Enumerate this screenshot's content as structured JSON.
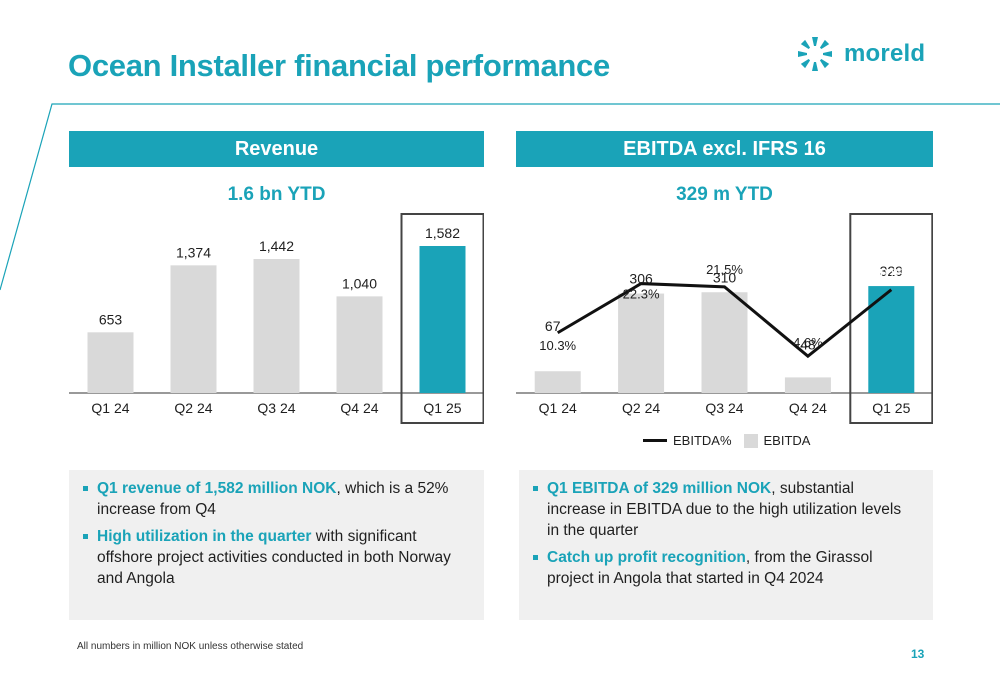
{
  "title": "Ocean Installer financial performance",
  "logo": {
    "text": "moreld",
    "icon": "moreld-logo-icon"
  },
  "revenue": {
    "header": "Revenue",
    "ytd": "1.6 bn YTD"
  },
  "ebitda": {
    "header": "EBITDA excl. IFRS 16",
    "ytd": "329 m YTD"
  },
  "legend": {
    "line_label": "EBITDA%",
    "bar_label": "EBITDA"
  },
  "revenue_text": {
    "b1_em": "Q1 revenue of 1,582 million NOK",
    "b1_rest": ", which is a 52% increase from Q4",
    "b2_em": "High utilization in the quarter",
    "b2_rest": " with significant offshore project activities conducted in both Norway and Angola"
  },
  "ebitda_text": {
    "b1_em": "Q1 EBITDA of 329 million NOK",
    "b1_rest": ", substantial increase in EBITDA due to the high utilization levels in the quarter",
    "b2_em": "Catch up profit recognition",
    "b2_rest": ", from the Girassol project in Angola that started in Q4 2024"
  },
  "footnote": "All numbers in million NOK unless otherwise stated",
  "page_number": "13",
  "colors": {
    "accent": "#1aa3b8",
    "bar_grey": "#d9d9d9",
    "line": "#111111"
  },
  "chart_data": [
    {
      "type": "bar",
      "title": "Revenue",
      "categories": [
        "Q1 24",
        "Q2 24",
        "Q3 24",
        "Q4 24",
        "Q1 25"
      ],
      "values": [
        653,
        1374,
        1442,
        1040,
        1582
      ],
      "value_labels": [
        "653",
        "1,374",
        "1,442",
        "1,040",
        "1,582"
      ],
      "highlight_index": 4,
      "ylim": [
        0,
        1582
      ]
    },
    {
      "type": "bar+line",
      "title": "EBITDA excl. IFRS 16",
      "categories": [
        "Q1 24",
        "Q2 24",
        "Q3 24",
        "Q4 24",
        "Q1 25"
      ],
      "series": [
        {
          "name": "EBITDA",
          "type": "bar",
          "values": [
            67,
            306,
            310,
            48,
            329
          ],
          "value_labels": [
            "67",
            "306",
            "310",
            "48",
            "329"
          ]
        },
        {
          "name": "EBITDA%",
          "type": "line",
          "values": [
            10.3,
            22.3,
            21.5,
            4.6,
            20.8
          ],
          "value_labels": [
            "10.3%",
            "22.3%",
            "21.5%",
            "4.6%",
            "20.8%"
          ]
        }
      ],
      "highlight_index": 4,
      "legend": "bottom"
    }
  ]
}
